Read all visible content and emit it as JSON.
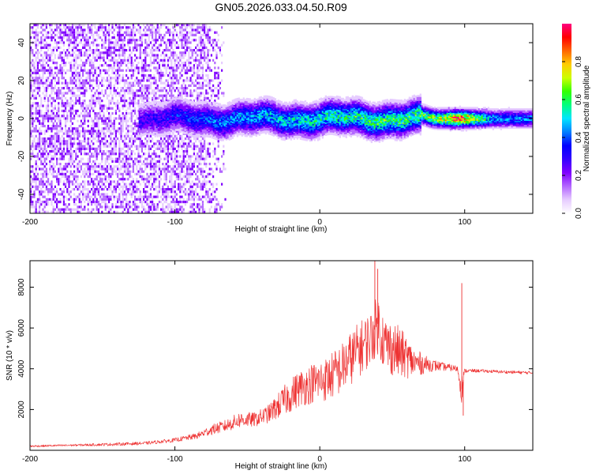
{
  "title": "GN05.2026.033.04.50.R09",
  "chart_data": [
    {
      "type": "heatmap",
      "xlabel": "Height of straight line (km)",
      "ylabel": "Frequency (Hz)",
      "xlim": [
        -200,
        147
      ],
      "ylim": [
        -50,
        50
      ],
      "xticks": [
        -200,
        -100,
        0,
        100
      ],
      "xtick_labels": [
        "-200",
        "-100",
        "0",
        "100"
      ],
      "yticks": [
        -40,
        -20,
        0,
        20,
        40
      ],
      "ytick_labels": [
        "-40",
        "-20",
        "0",
        "20",
        "40"
      ],
      "colorbar": {
        "label": "Normalized spectral amplitude",
        "range": [
          0.0,
          1.0
        ],
        "ticks": [
          0.0,
          0.2,
          0.4,
          0.6,
          0.8
        ],
        "tick_labels": [
          "0.0",
          "0.2",
          "0.4",
          "0.6",
          "0.8"
        ],
        "colors": [
          "#ffffff",
          "#e6ccff",
          "#b366ff",
          "#8000ff",
          "#3300ff",
          "#0000ff",
          "#0080ff",
          "#00e5ff",
          "#00ff80",
          "#33ff00",
          "#ccff00",
          "#ffcc00",
          "#ff6600",
          "#ff0000",
          "#ff0080"
        ]
      },
      "regions": [
        {
          "x_range": [
            -200,
            -70
          ],
          "description": "broadband noise",
          "amplitude": 0.12
        },
        {
          "x_range": [
            -70,
            147
          ],
          "center_freq_hz": 0,
          "bandwidth_hz": 8,
          "peak_amplitude": 0.9
        }
      ],
      "ridge_peaks": [
        {
          "x": -120,
          "amplitude": 0.3
        },
        {
          "x": -60,
          "amplitude": 0.45
        },
        {
          "x": -30,
          "amplitude": 0.5
        },
        {
          "x": 0,
          "amplitude": 0.55
        },
        {
          "x": 40,
          "amplitude": 0.6
        },
        {
          "x": 65,
          "amplitude": 0.6
        },
        {
          "x": 85,
          "amplitude": 0.75
        },
        {
          "x": 95,
          "amplitude": 0.95
        },
        {
          "x": 120,
          "amplitude": 0.45
        },
        {
          "x": 147,
          "amplitude": 0.45
        }
      ]
    },
    {
      "type": "line",
      "xlabel": "Height of straight line (km)",
      "ylabel": "SNR (10 * v/v)",
      "xlim": [
        -200,
        147
      ],
      "ylim": [
        0,
        9300
      ],
      "xticks": [
        -200,
        -100,
        0,
        100
      ],
      "xtick_labels": [
        "-200",
        "-100",
        "0",
        "100"
      ],
      "yticks": [
        2000,
        4000,
        6000,
        8000
      ],
      "ytick_labels": [
        "2000",
        "4000",
        "6000",
        "8000"
      ],
      "color": "#ee3333",
      "series": [
        {
          "name": "SNR",
          "x": [
            -200,
            -170,
            -140,
            -120,
            -100,
            -85,
            -75,
            -65,
            -55,
            -45,
            -35,
            -25,
            -15,
            -5,
            5,
            15,
            25,
            35,
            40,
            45,
            55,
            65,
            75,
            85,
            95,
            98,
            100,
            110,
            125,
            147
          ],
          "y": [
            200,
            250,
            300,
            350,
            500,
            700,
            1000,
            1200,
            1500,
            1500,
            1800,
            2400,
            3000,
            3300,
            3500,
            4000,
            4800,
            5500,
            6200,
            5200,
            4800,
            4300,
            4200,
            4100,
            4000,
            3000,
            3900,
            3900,
            3850,
            3800
          ],
          "spread": [
            100,
            100,
            150,
            150,
            200,
            300,
            500,
            600,
            800,
            700,
            900,
            1500,
            1800,
            2000,
            2200,
            2500,
            2700,
            2700,
            3000,
            2800,
            2600,
            1500,
            700,
            400,
            300,
            1500,
            200,
            150,
            150,
            150
          ]
        }
      ],
      "spikes": [
        {
          "x": 38,
          "y": 9300
        },
        {
          "x": 40,
          "y": 8900
        },
        {
          "x": 98,
          "y": 8200
        },
        {
          "x": 99,
          "y": 1700
        }
      ]
    }
  ]
}
